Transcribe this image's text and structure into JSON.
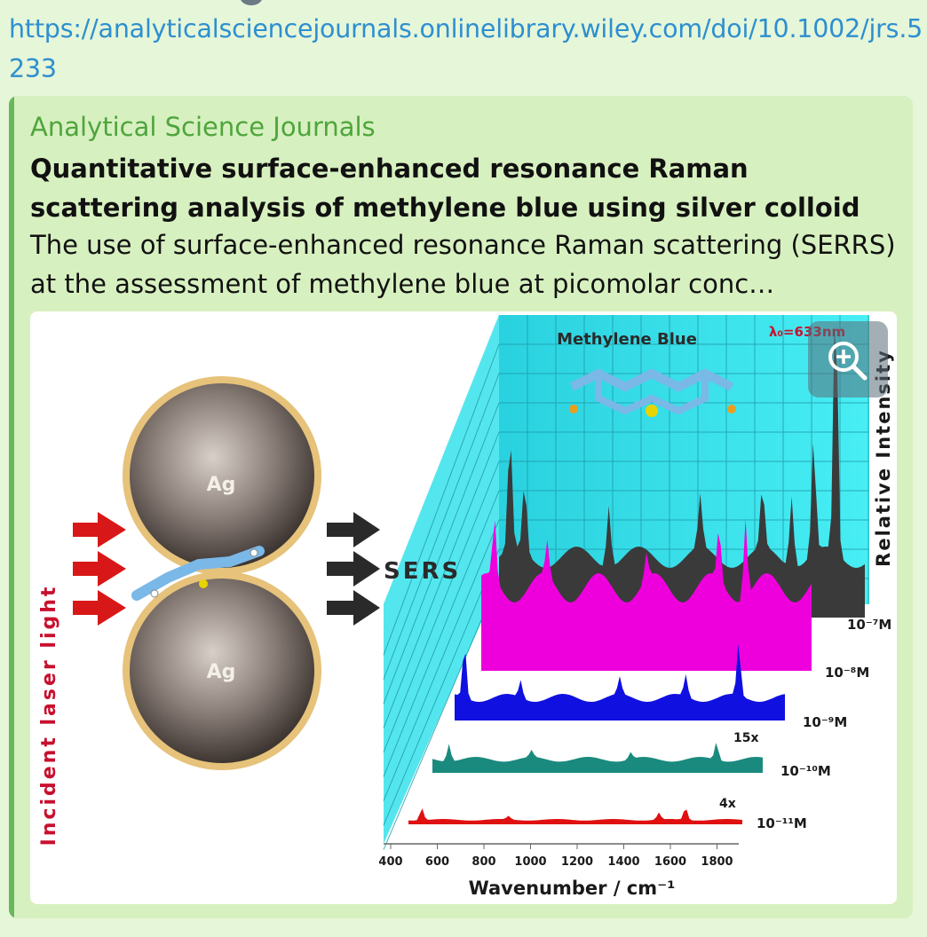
{
  "message": {
    "url": "https://analyticalsciencejournals.onlinelibrary.wiley.com/doi/10.1002/jrs.5233"
  },
  "preview": {
    "site_name": "Analytical Science Journals",
    "title": "Quantitative surface-enhanced resonance Raman scattering analysis of methylene blue using silver colloid",
    "description": "The use of surface-enhanced resonance Raman scattering (SERRS) at the assessment of methylene blue at picomolar conc…",
    "zoom_icon": "zoom-in-icon"
  },
  "figure": {
    "incident_label": "Incident laser light",
    "particle_label": "Ag",
    "sers_label": "SERS",
    "molecule_label": "Methylene Blue",
    "lambda_label": "λ₀=633nm",
    "y_axis_label": "Relative Intensity",
    "x_axis_label": "Wavenumber / cm⁻¹",
    "x_ticks": [
      "400",
      "600",
      "800",
      "1000",
      "1200",
      "1400",
      "1600",
      "1800"
    ],
    "concentrations": [
      "10⁻⁷M",
      "10⁻⁸M",
      "10⁻⁹M",
      "10⁻¹⁰M",
      "10⁻¹¹M"
    ],
    "multipliers": [
      "15x",
      "4x"
    ],
    "colors": {
      "backplane": "#34e4ec",
      "spectrum_1e7": "#3a3a3a",
      "spectrum_1e8": "#ee00dd",
      "spectrum_1e9": "#1010e0",
      "spectrum_1e10": "#1a8a7e",
      "spectrum_1e11": "#e01010",
      "arrow": "#d81818",
      "label_red": "#c8102e"
    }
  }
}
